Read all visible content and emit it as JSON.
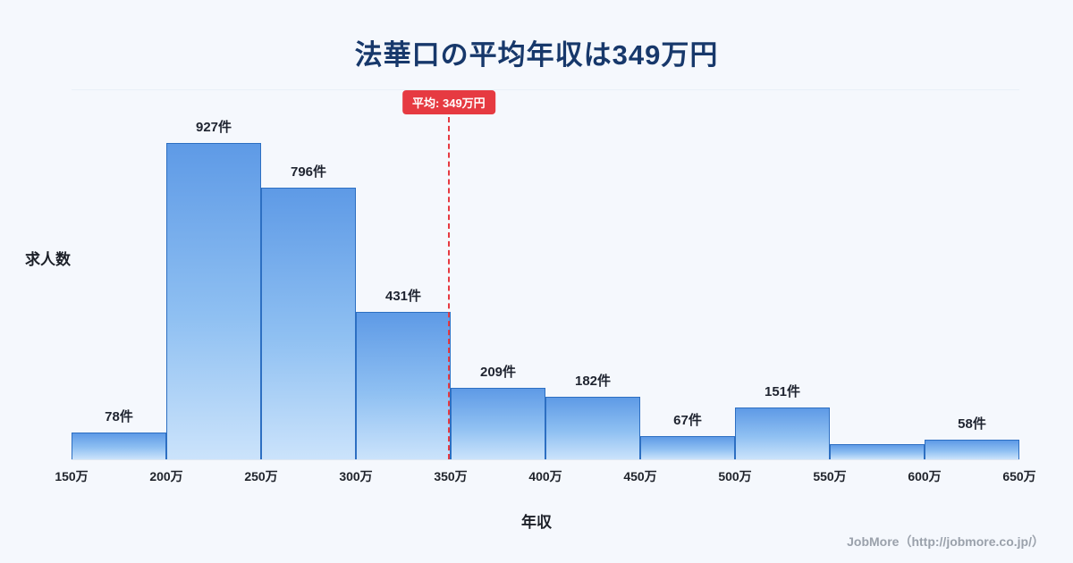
{
  "title": "法華口の平均年収は349万円",
  "y_axis_label": "求人数",
  "x_axis_label": "年収",
  "footer": "JobMore（http://jobmore.co.jp/）",
  "colors": {
    "title": "#17386b",
    "bar_top": "#5e9ae6",
    "bar_bottom": "#cbe3fb",
    "bar_border": "#2d6fc2",
    "average_line": "#e63a41",
    "background": "#f5f8fd"
  },
  "chart_data": {
    "type": "bar",
    "title": "法華口の平均年収は349万円",
    "xlabel": "年収",
    "ylabel": "求人数",
    "xlim": [
      150,
      650
    ],
    "ylim": [
      0,
      1080
    ],
    "grid": false,
    "legend": false,
    "tick_labels": [
      "150万",
      "200万",
      "250万",
      "300万",
      "350万",
      "400万",
      "450万",
      "500万",
      "550万",
      "600万",
      "650万"
    ],
    "bins": [
      {
        "range": "150万-200万",
        "count": 78,
        "label": "78件"
      },
      {
        "range": "200万-250万",
        "count": 927,
        "label": "927件"
      },
      {
        "range": "250万-300万",
        "count": 796,
        "label": "796件"
      },
      {
        "range": "300万-350万",
        "count": 431,
        "label": "431件"
      },
      {
        "range": "350万-400万",
        "count": 209,
        "label": "209件"
      },
      {
        "range": "400万-450万",
        "count": 182,
        "label": "182件"
      },
      {
        "range": "450万-500万",
        "count": 67,
        "label": "67件"
      },
      {
        "range": "500万-550万",
        "count": 151,
        "label": "151件"
      },
      {
        "range": "550万-600万",
        "count": 45,
        "label": ""
      },
      {
        "range": "600万-650万",
        "count": 58,
        "label": "58件"
      }
    ],
    "average_line": {
      "value": 349,
      "label": "平均: 349万円"
    }
  }
}
